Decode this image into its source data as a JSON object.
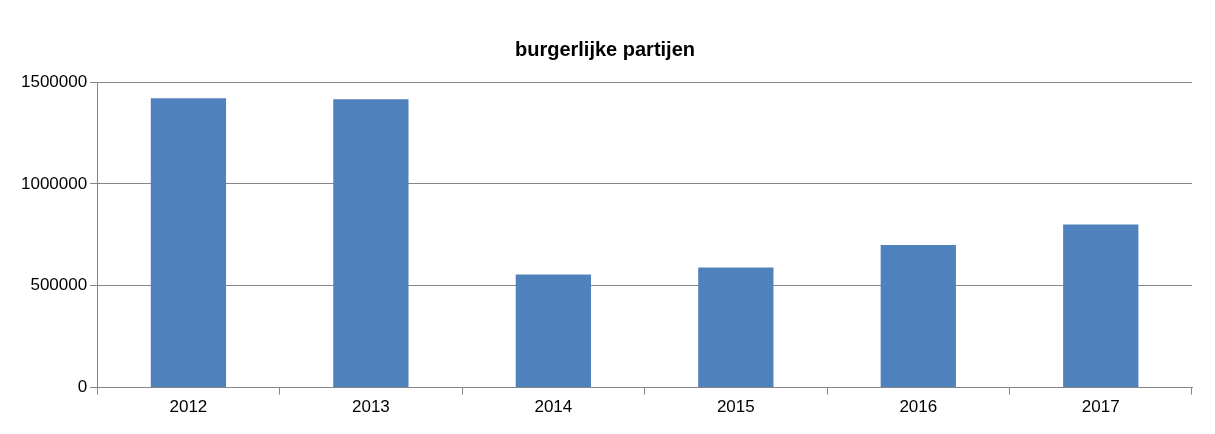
{
  "chart_data": {
    "type": "bar",
    "title": "burgerlijke partijen",
    "categories": [
      "2012",
      "2013",
      "2014",
      "2015",
      "2016",
      "2017"
    ],
    "values": [
      1420000,
      1415000,
      555000,
      590000,
      700000,
      800000
    ],
    "color": "#4f81bd",
    "ylim": [
      0,
      1500000
    ],
    "yticks": [
      0,
      500000,
      1000000,
      1500000
    ],
    "grid": "y",
    "legend": false
  }
}
